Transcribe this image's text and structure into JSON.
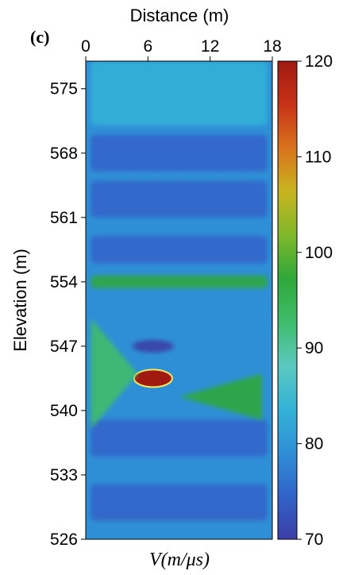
{
  "chart_data": {
    "type": "heatmap",
    "panel_label": "(c)",
    "title": "",
    "xlabel": "Distance (m)",
    "ylabel": "Elevation (m)",
    "colorbar_label": "V(m/μs)",
    "xlim": [
      0,
      18
    ],
    "ylim": [
      526,
      578
    ],
    "x_ticks": [
      "0",
      "6",
      "12",
      "18"
    ],
    "y_ticks": [
      "575",
      "568",
      "561",
      "554",
      "547",
      "540",
      "533",
      "526"
    ],
    "color_range": [
      70,
      120
    ],
    "colorbar_ticks": [
      "120",
      "110",
      "100",
      "90",
      "80",
      "70"
    ],
    "colormap": [
      "#3b3fa6",
      "#3163c9",
      "#2f8fd6",
      "#33b3d6",
      "#5cc8c0",
      "#3fbd6a",
      "#2fa83a",
      "#7fb82a",
      "#c8b41e",
      "#d9731c",
      "#c83218",
      "#a01a12"
    ],
    "background_velocity": 80,
    "layers": [
      {
        "elevation_range": [
          571,
          578
        ],
        "velocity": 82
      },
      {
        "elevation_range": [
          566,
          570
        ],
        "velocity": 75
      },
      {
        "elevation_range": [
          561,
          565
        ],
        "velocity": 76
      },
      {
        "elevation_range": [
          556,
          559
        ],
        "velocity": 74
      },
      {
        "elevation_range": [
          553.3,
          554.7
        ],
        "velocity": 96
      },
      {
        "elevation_range": [
          549,
          552
        ],
        "velocity": 78
      },
      {
        "elevation_range": [
          535,
          539
        ],
        "velocity": 74
      },
      {
        "elevation_range": [
          528,
          532
        ],
        "velocity": 76
      }
    ],
    "features": [
      {
        "name": "high-velocity anomaly",
        "x": 6.5,
        "elevation": 543.5,
        "velocity": 120
      },
      {
        "name": "left wedge",
        "x_range": [
          0.5,
          5
        ],
        "elevation_range": [
          538,
          550
        ],
        "velocity": 94
      },
      {
        "name": "right wedge",
        "x_range": [
          9,
          17
        ],
        "elevation_range": [
          539,
          544
        ],
        "velocity": 95
      },
      {
        "name": "low-velocity lens",
        "x": 6.5,
        "elevation": 547,
        "velocity": 72
      }
    ]
  }
}
